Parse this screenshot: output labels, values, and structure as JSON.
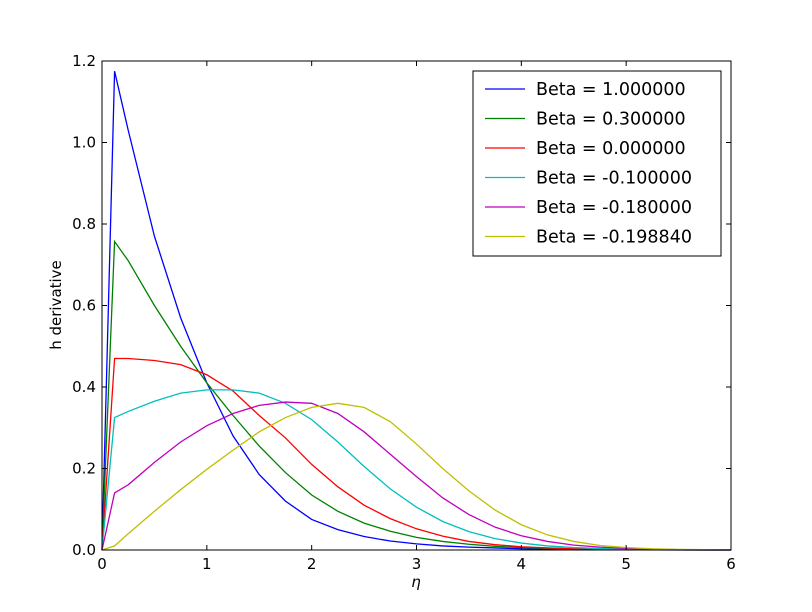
{
  "chart_data": {
    "type": "line",
    "title": "",
    "xlabel": "η",
    "ylabel": "h derivative",
    "xlim": [
      0,
      6
    ],
    "ylim": [
      0,
      1.2
    ],
    "grid": false,
    "legend_position": "top-right",
    "x_ticks": [
      "0",
      "1",
      "2",
      "3",
      "4",
      "5",
      "6"
    ],
    "y_ticks": [
      "0.0",
      "0.2",
      "0.4",
      "0.6",
      "0.8",
      "1.0",
      "1.2"
    ],
    "x": [
      0,
      0.12,
      0.25,
      0.5,
      0.75,
      1.0,
      1.25,
      1.5,
      1.75,
      2.0,
      2.25,
      2.5,
      2.75,
      3.0,
      3.25,
      3.5,
      3.75,
      4.0,
      4.25,
      4.5,
      4.75,
      5.0,
      5.25,
      5.5,
      5.75,
      6.0
    ],
    "series": [
      {
        "name": "Beta = 1.000000",
        "color": "#0000ff",
        "values": [
          0,
          1.175,
          1.03,
          0.77,
          0.57,
          0.41,
          0.28,
          0.185,
          0.12,
          0.075,
          0.05,
          0.033,
          0.022,
          0.015,
          0.01,
          0.007,
          0.005,
          0.003,
          0.002,
          0.0015,
          0.001,
          0.0006,
          0.0004,
          0.0002,
          0.0001,
          0.0
        ]
      },
      {
        "name": "Beta = 0.300000",
        "color": "#008000",
        "values": [
          0,
          0.757,
          0.71,
          0.6,
          0.5,
          0.41,
          0.33,
          0.255,
          0.19,
          0.135,
          0.095,
          0.066,
          0.046,
          0.031,
          0.021,
          0.014,
          0.009,
          0.006,
          0.004,
          0.0025,
          0.0015,
          0.001,
          0.0006,
          0.0004,
          0.0002,
          0.0
        ]
      },
      {
        "name": "Beta = 0.000000",
        "color": "#ff0000",
        "values": [
          0,
          0.47,
          0.47,
          0.465,
          0.455,
          0.43,
          0.39,
          0.33,
          0.275,
          0.21,
          0.155,
          0.11,
          0.077,
          0.052,
          0.034,
          0.021,
          0.013,
          0.008,
          0.005,
          0.003,
          0.002,
          0.001,
          0.0006,
          0.0003,
          0.0001,
          0.0
        ]
      },
      {
        "name": "Beta = -0.100000",
        "color": "#00bfbf",
        "values": [
          0,
          0.325,
          0.34,
          0.365,
          0.385,
          0.393,
          0.393,
          0.385,
          0.36,
          0.32,
          0.265,
          0.205,
          0.15,
          0.105,
          0.07,
          0.045,
          0.028,
          0.017,
          0.01,
          0.006,
          0.0035,
          0.002,
          0.001,
          0.0005,
          0.0002,
          0.0
        ]
      },
      {
        "name": "Beta = -0.180000",
        "color": "#bf00bf",
        "values": [
          0,
          0.14,
          0.16,
          0.215,
          0.265,
          0.305,
          0.335,
          0.355,
          0.363,
          0.36,
          0.335,
          0.29,
          0.235,
          0.18,
          0.128,
          0.087,
          0.056,
          0.035,
          0.021,
          0.012,
          0.007,
          0.004,
          0.002,
          0.001,
          0.0005,
          0.0
        ]
      },
      {
        "name": "Beta = -0.198840",
        "color": "#bfbf00",
        "values": [
          0,
          0.01,
          0.04,
          0.095,
          0.148,
          0.198,
          0.245,
          0.29,
          0.325,
          0.35,
          0.36,
          0.35,
          0.315,
          0.26,
          0.2,
          0.145,
          0.098,
          0.062,
          0.037,
          0.021,
          0.011,
          0.006,
          0.003,
          0.0015,
          0.0007,
          0.0003
        ]
      }
    ]
  }
}
